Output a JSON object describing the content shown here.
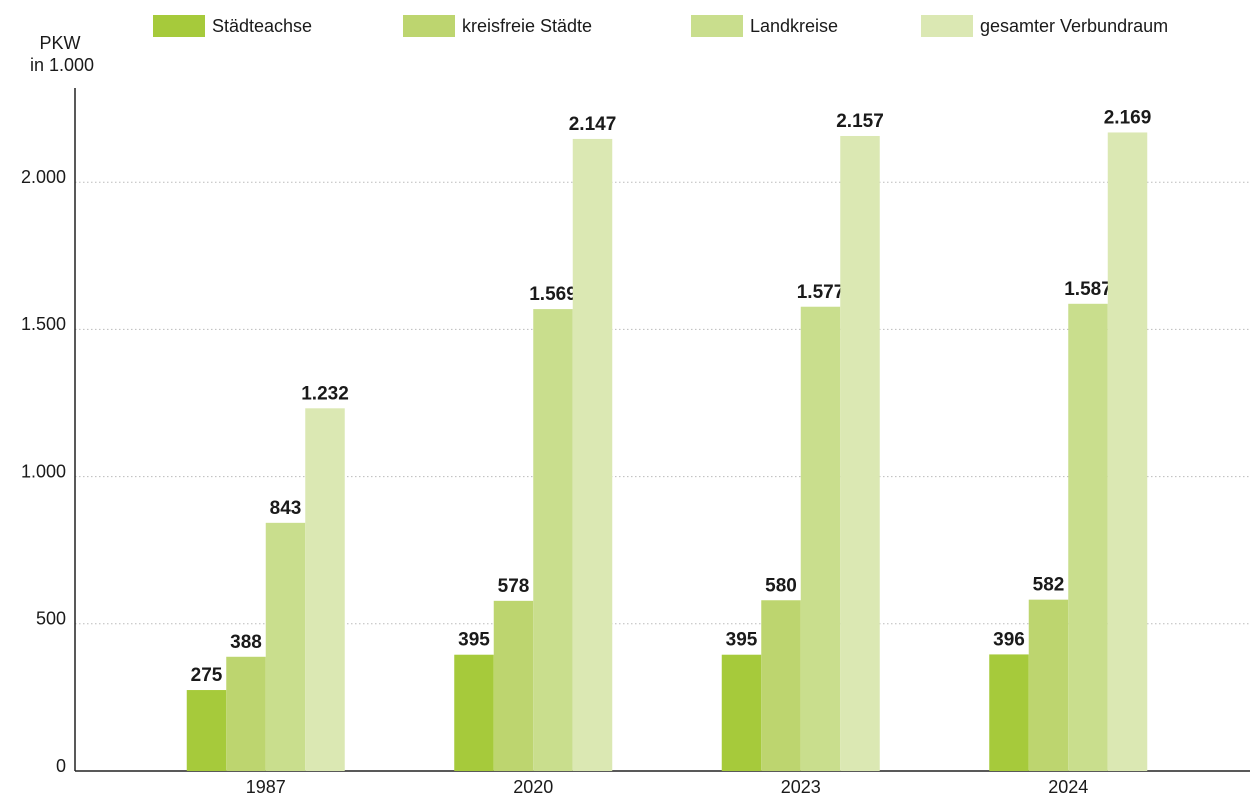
{
  "chart_data": {
    "type": "bar",
    "y_label": [
      "PKW",
      "in 1.000"
    ],
    "categories": [
      "1987",
      "2020",
      "2023",
      "2024"
    ],
    "series": [
      {
        "name": "Städteachse",
        "color": "#a6ca3b",
        "values": [
          275,
          395,
          395,
          396
        ],
        "value_labels": [
          "275",
          "395",
          "395",
          "396"
        ]
      },
      {
        "name": "kreisfreie Städte",
        "color": "#bdd56f",
        "values": [
          388,
          578,
          580,
          582
        ],
        "value_labels": [
          "388",
          "578",
          "580",
          "582"
        ]
      },
      {
        "name": "Landkreise",
        "color": "#c9de8d",
        "values": [
          843,
          1569,
          1577,
          1587
        ],
        "value_labels": [
          "843",
          "1.569",
          "1.577",
          "1.587"
        ]
      },
      {
        "name": "gesamter Verbundraum",
        "color": "#dbe8b3",
        "values": [
          1232,
          2147,
          2157,
          2169
        ],
        "value_labels": [
          "1.232",
          "2.147",
          "2.157",
          "2.169"
        ]
      }
    ],
    "ylim": [
      0,
      2320
    ],
    "yticks": [
      0,
      500,
      {
        "value": 1000,
        "label": "1.000"
      },
      {
        "value": 1500,
        "label": "1.500"
      },
      {
        "value": 2000,
        "label": "2.000"
      }
    ],
    "grid": true,
    "legend": "top"
  }
}
